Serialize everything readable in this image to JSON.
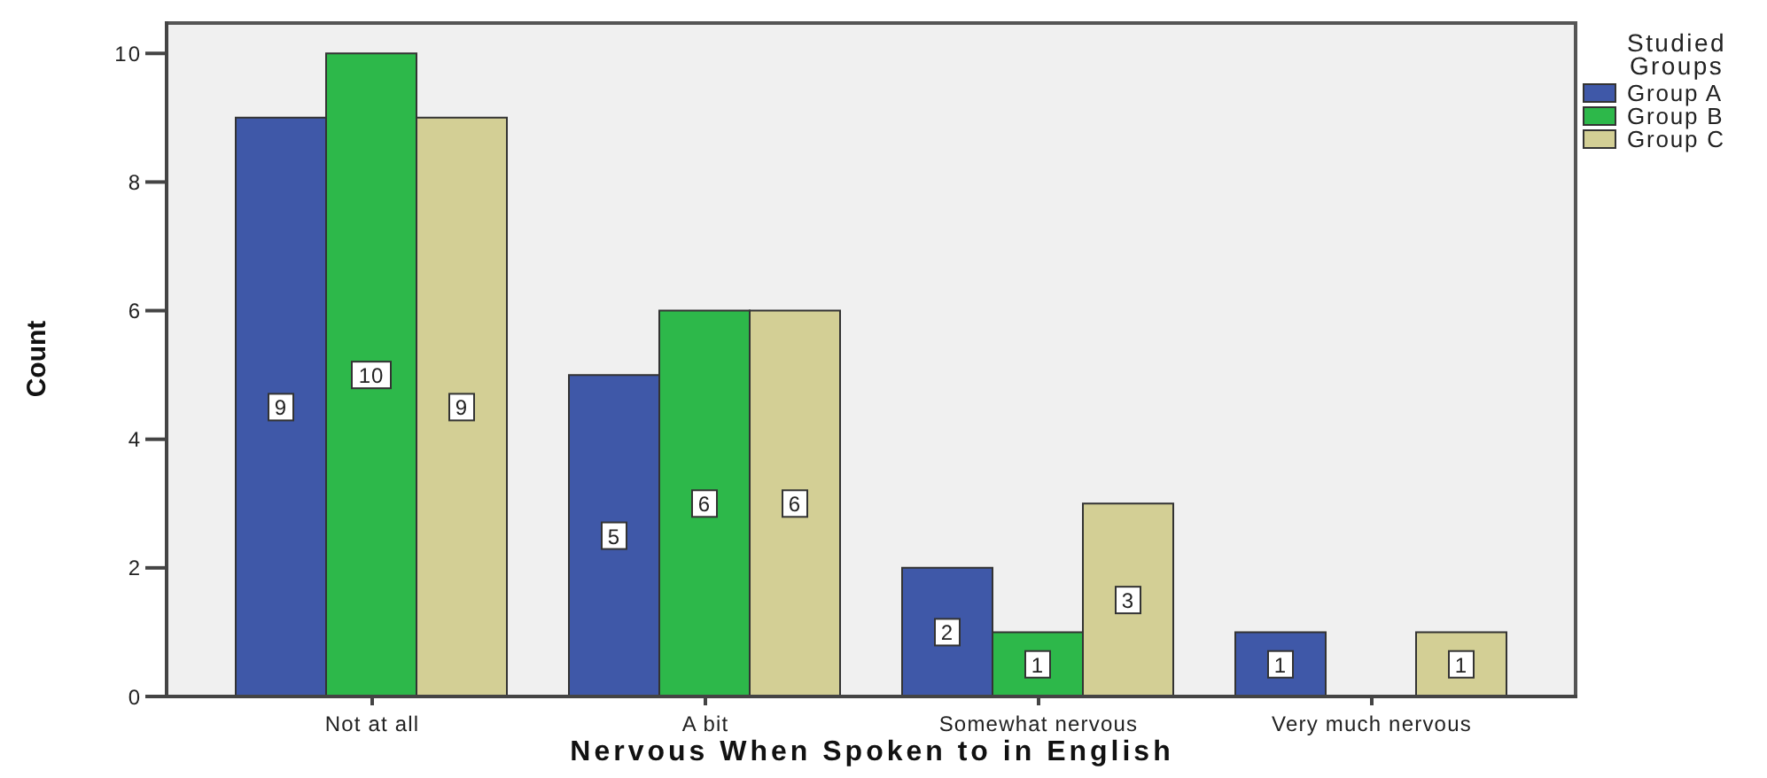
{
  "chart_data": {
    "type": "bar",
    "xlabel": "Nervous When Spoken to in English",
    "ylabel": "Count",
    "legend_title": "Studied Groups",
    "legend": "top right",
    "data_labels": true,
    "categories": [
      "Not at all",
      "A bit",
      "Somewhat nervous",
      "Very much nervous"
    ],
    "series": [
      {
        "name": "Group A",
        "color": "#3f58a8",
        "values": [
          9,
          5,
          2,
          1
        ]
      },
      {
        "name": "Group B",
        "color": "#2db84a",
        "values": [
          10,
          6,
          1,
          null
        ]
      },
      {
        "name": "Group C",
        "color": "#d3cf95",
        "values": [
          9,
          6,
          3,
          1
        ]
      }
    ],
    "ylim": [
      0,
      10.5
    ],
    "yticks": [
      0,
      2,
      4,
      6,
      8,
      10
    ]
  }
}
